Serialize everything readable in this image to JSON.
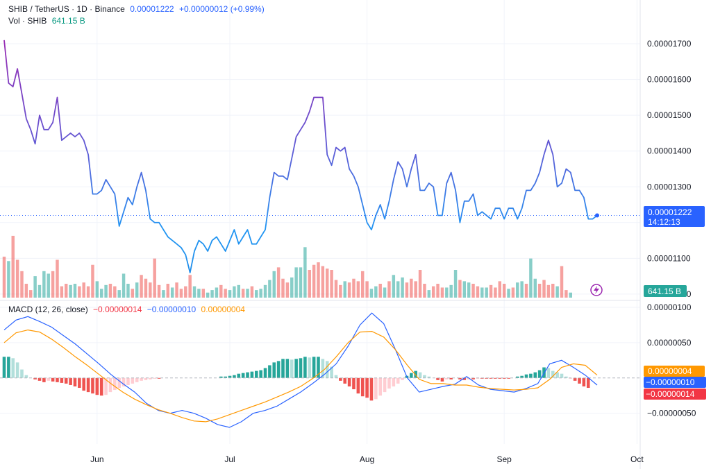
{
  "header": {
    "symbol": "SHIB / TetherUS · 1D · Binance",
    "last_price": "0.00001222",
    "change": "+0.00000012 (+0.99%)",
    "vol_label": "Vol · SHIB",
    "vol_value": "641.15 B"
  },
  "macd_header": {
    "label": "MACD (12, 26, close)",
    "histogram": "−0.00000014",
    "macd": "−0.00000010",
    "signal": "0.00000004"
  },
  "price_tag": {
    "price": "0.00001222",
    "countdown": "14:12:13"
  },
  "volume_tag": "641.15 B",
  "macd_tags": {
    "signal": "0.00000004",
    "macd": "−0.00000010",
    "histogram": "−0.00000014"
  },
  "lightning_icon": "lightning-bolt-icon",
  "colors": {
    "up": "#26a69a",
    "up_light": "#b2dfdb",
    "down": "#ef5350",
    "down_light": "#ffcdd2",
    "macd": "#2962ff",
    "signal": "#ff9800",
    "price_tag": "#2962ff",
    "vol_tag": "#26a69a",
    "hist_tag": "#f23645",
    "header_blue": "#2962ff",
    "header_green": "#089981"
  },
  "chart_data": {
    "type": "line",
    "price_axis": {
      "ticks": [
        "0.00001700",
        "0.00001600",
        "0.00001500",
        "0.00001400",
        "0.00001300",
        "0.00001200",
        "0.00001100",
        "0.00001000"
      ],
      "range": [
        9.94e-06,
        1.735e-05
      ]
    },
    "macd_axis": {
      "ticks": [
        "0.00000100",
        "0.00000050",
        "−0.00000050"
      ],
      "range": [
        -7e-07,
        1.02e-06
      ]
    },
    "x_axis": {
      "labels": [
        "Jun",
        "Jul",
        "Aug",
        "Sep",
        "Oct"
      ],
      "dates": [
        "2024-06-01",
        "2024-07-01",
        "2024-08-01",
        "2024-09-01",
        "2024-10-01"
      ]
    },
    "start_date": "2024-05-11",
    "price_series": [
      1.71e-05,
      1.59e-05,
      1.58e-05,
      1.63e-05,
      1.56e-05,
      1.49e-05,
      1.46e-05,
      1.42e-05,
      1.5e-05,
      1.46e-05,
      1.46e-05,
      1.48e-05,
      1.55e-05,
      1.43e-05,
      1.44e-05,
      1.45e-05,
      1.44e-05,
      1.45e-05,
      1.43e-05,
      1.39e-05,
      1.28e-05,
      1.28e-05,
      1.29e-05,
      1.32e-05,
      1.3e-05,
      1.28e-05,
      1.19e-05,
      1.23e-05,
      1.27e-05,
      1.25e-05,
      1.3e-05,
      1.34e-05,
      1.29e-05,
      1.21e-05,
      1.2e-05,
      1.2e-05,
      1.18e-05,
      1.16e-05,
      1.15e-05,
      1.14e-05,
      1.13e-05,
      1.11e-05,
      1.06e-05,
      1.12e-05,
      1.15e-05,
      1.14e-05,
      1.12e-05,
      1.15e-05,
      1.16e-05,
      1.14e-05,
      1.12e-05,
      1.15e-05,
      1.18e-05,
      1.14e-05,
      1.16e-05,
      1.18e-05,
      1.14e-05,
      1.14e-05,
      1.16e-05,
      1.18e-05,
      1.27e-05,
      1.34e-05,
      1.33e-05,
      1.33e-05,
      1.32e-05,
      1.38e-05,
      1.44e-05,
      1.46e-05,
      1.48e-05,
      1.51e-05,
      1.55e-05,
      1.55e-05,
      1.55e-05,
      1.39e-05,
      1.36e-05,
      1.41e-05,
      1.4e-05,
      1.41e-05,
      1.35e-05,
      1.33e-05,
      1.3e-05,
      1.25e-05,
      1.2e-05,
      1.18e-05,
      1.22e-05,
      1.25e-05,
      1.21e-05,
      1.26e-05,
      1.32e-05,
      1.37e-05,
      1.35e-05,
      1.3e-05,
      1.35e-05,
      1.39e-05,
      1.29e-05,
      1.29e-05,
      1.31e-05,
      1.3e-05,
      1.22e-05,
      1.22e-05,
      1.31e-05,
      1.34e-05,
      1.29e-05,
      1.2e-05,
      1.26e-05,
      1.26e-05,
      1.28e-05,
      1.22e-05,
      1.23e-05,
      1.22e-05,
      1.21e-05,
      1.24e-05,
      1.24e-05,
      1.21e-05,
      1.24e-05,
      1.24e-05,
      1.21e-05,
      1.24e-05,
      1.29e-05,
      1.29e-05,
      1.31e-05,
      1.34e-05,
      1.39e-05,
      1.43e-05,
      1.39e-05,
      1.3e-05,
      1.31e-05,
      1.35e-05,
      1.34e-05,
      1.29e-05,
      1.29e-05,
      1.27e-05,
      1.21e-05,
      1.21e-05,
      1.22e-05
    ],
    "volume_bars": [
      {
        "v": 65,
        "up": false
      },
      {
        "v": 58,
        "up": true
      },
      {
        "v": 98,
        "up": false
      },
      {
        "v": 60,
        "up": false
      },
      {
        "v": 42,
        "up": false
      },
      {
        "v": 22,
        "up": false
      },
      {
        "v": 12,
        "up": false
      },
      {
        "v": 34,
        "up": true
      },
      {
        "v": 20,
        "up": true
      },
      {
        "v": 42,
        "up": true
      },
      {
        "v": 38,
        "up": true
      },
      {
        "v": 42,
        "up": false
      },
      {
        "v": 60,
        "up": false
      },
      {
        "v": 18,
        "up": false
      },
      {
        "v": 22,
        "up": false
      },
      {
        "v": 20,
        "up": true
      },
      {
        "v": 22,
        "up": true
      },
      {
        "v": 18,
        "up": false
      },
      {
        "v": 24,
        "up": false
      },
      {
        "v": 18,
        "up": false
      },
      {
        "v": 52,
        "up": false
      },
      {
        "v": 26,
        "up": true
      },
      {
        "v": 14,
        "up": true
      },
      {
        "v": 20,
        "up": true
      },
      {
        "v": 22,
        "up": false
      },
      {
        "v": 18,
        "up": false
      },
      {
        "v": 12,
        "up": true
      },
      {
        "v": 38,
        "up": true
      },
      {
        "v": 22,
        "up": true
      },
      {
        "v": 14,
        "up": false
      },
      {
        "v": 24,
        "up": true
      },
      {
        "v": 36,
        "up": false
      },
      {
        "v": 30,
        "up": false
      },
      {
        "v": 24,
        "up": false
      },
      {
        "v": 62,
        "up": false
      },
      {
        "v": 20,
        "up": false
      },
      {
        "v": 12,
        "up": true
      },
      {
        "v": 22,
        "up": false
      },
      {
        "v": 16,
        "up": true
      },
      {
        "v": 24,
        "up": false
      },
      {
        "v": 14,
        "up": false
      },
      {
        "v": 18,
        "up": false
      },
      {
        "v": 36,
        "up": false
      },
      {
        "v": 18,
        "up": true
      },
      {
        "v": 14,
        "up": true
      },
      {
        "v": 14,
        "up": false
      },
      {
        "v": 8,
        "up": true
      },
      {
        "v": 12,
        "up": true
      },
      {
        "v": 16,
        "up": true
      },
      {
        "v": 20,
        "up": false
      },
      {
        "v": 14,
        "up": false
      },
      {
        "v": 12,
        "up": true
      },
      {
        "v": 18,
        "up": true
      },
      {
        "v": 20,
        "up": true
      },
      {
        "v": 14,
        "up": false
      },
      {
        "v": 14,
        "up": true
      },
      {
        "v": 18,
        "up": false
      },
      {
        "v": 12,
        "up": true
      },
      {
        "v": 14,
        "up": true
      },
      {
        "v": 20,
        "up": true
      },
      {
        "v": 28,
        "up": true
      },
      {
        "v": 42,
        "up": true
      },
      {
        "v": 48,
        "up": false
      },
      {
        "v": 30,
        "up": false
      },
      {
        "v": 24,
        "up": false
      },
      {
        "v": 32,
        "up": true
      },
      {
        "v": 48,
        "up": true
      },
      {
        "v": 48,
        "up": true
      },
      {
        "v": 80,
        "up": true
      },
      {
        "v": 44,
        "up": false
      },
      {
        "v": 52,
        "up": false
      },
      {
        "v": 56,
        "up": false
      },
      {
        "v": 50,
        "up": false
      },
      {
        "v": 46,
        "up": false
      },
      {
        "v": 44,
        "up": false
      },
      {
        "v": 28,
        "up": false
      },
      {
        "v": 20,
        "up": false
      },
      {
        "v": 26,
        "up": true
      },
      {
        "v": 24,
        "up": false
      },
      {
        "v": 30,
        "up": false
      },
      {
        "v": 26,
        "up": false
      },
      {
        "v": 42,
        "up": false
      },
      {
        "v": 26,
        "up": false
      },
      {
        "v": 14,
        "up": true
      },
      {
        "v": 18,
        "up": true
      },
      {
        "v": 22,
        "up": false
      },
      {
        "v": 16,
        "up": true
      },
      {
        "v": 26,
        "up": false
      },
      {
        "v": 36,
        "up": true
      },
      {
        "v": 26,
        "up": true
      },
      {
        "v": 32,
        "up": true
      },
      {
        "v": 24,
        "up": false
      },
      {
        "v": 30,
        "up": false
      },
      {
        "v": 26,
        "up": false
      },
      {
        "v": 44,
        "up": false
      },
      {
        "v": 22,
        "up": false
      },
      {
        "v": 12,
        "up": true
      },
      {
        "v": 18,
        "up": false
      },
      {
        "v": 22,
        "up": false
      },
      {
        "v": 16,
        "up": false
      },
      {
        "v": 16,
        "up": true
      },
      {
        "v": 20,
        "up": true
      },
      {
        "v": 44,
        "up": true
      },
      {
        "v": 28,
        "up": false
      },
      {
        "v": 26,
        "up": true
      },
      {
        "v": 24,
        "up": true
      },
      {
        "v": 22,
        "up": false
      },
      {
        "v": 18,
        "up": false
      },
      {
        "v": 16,
        "up": true
      },
      {
        "v": 16,
        "up": true
      },
      {
        "v": 20,
        "up": false
      },
      {
        "v": 16,
        "up": false
      },
      {
        "v": 26,
        "up": false
      },
      {
        "v": 22,
        "up": false
      },
      {
        "v": 14,
        "up": true
      },
      {
        "v": 16,
        "up": false
      },
      {
        "v": 24,
        "up": true
      },
      {
        "v": 26,
        "up": true
      },
      {
        "v": 22,
        "up": false
      },
      {
        "v": 62,
        "up": true
      },
      {
        "v": 30,
        "up": true
      },
      {
        "v": 22,
        "up": false
      },
      {
        "v": 28,
        "up": false
      },
      {
        "v": 20,
        "up": false
      },
      {
        "v": 22,
        "up": false
      },
      {
        "v": 18,
        "up": true
      },
      {
        "v": 50,
        "up": false
      },
      {
        "v": 12,
        "up": false
      },
      {
        "v": 8,
        "up": true
      }
    ],
    "macd_histogram": [
      3e-07,
      3e-07,
      2.8e-07,
      2.2e-07,
      1.2e-07,
      4e-08,
      0.0,
      -2e-08,
      -4e-08,
      -6e-08,
      -4e-08,
      -5e-08,
      -6e-08,
      -7e-08,
      -8e-08,
      -1e-07,
      -1.2e-07,
      -1.4e-07,
      -1.8e-07,
      -2e-07,
      -2.2e-07,
      -2.4e-07,
      -2.5e-07,
      -2.4e-07,
      -2e-07,
      -1.7e-07,
      -1.4e-07,
      -1.2e-07,
      -1e-07,
      -8e-08,
      -6e-08,
      -4e-08,
      -3e-08,
      -2e-08,
      -1e-08,
      -1e-08,
      0.0,
      0.0,
      0.0,
      0.0,
      0.0,
      0.0,
      0.0,
      0.0,
      0.0,
      0.0,
      0.0,
      0.0,
      0.0,
      2e-08,
      2e-08,
      3e-08,
      4e-08,
      6e-08,
      7e-08,
      8e-08,
      9e-08,
      1e-07,
      1.1e-07,
      1.4e-07,
      1.8e-07,
      2.2e-07,
      2.4e-07,
      2.7e-07,
      2.7e-07,
      2.6e-07,
      2.7e-07,
      2.8e-07,
      3e-07,
      2.9e-07,
      3e-07,
      3e-07,
      2.7e-07,
      2.4e-07,
      1.6e-07,
      4e-08,
      -4e-08,
      -8e-08,
      -1.2e-07,
      -1.6e-07,
      -2.2e-07,
      -2.6e-07,
      -2.8e-07,
      -3.2e-07,
      -3e-07,
      -2.5e-07,
      -2e-07,
      -1.5e-07,
      -1.2e-07,
      -8e-08,
      -3e-08,
      3e-08,
      7e-08,
      1e-07,
      8e-08,
      4e-08,
      2e-08,
      0.0,
      -3e-08,
      -5e-08,
      -2e-08,
      -2e-08,
      0.0,
      -2e-08,
      -3e-08,
      -2e-08,
      -2e-08,
      -1e-08,
      -1e-08,
      -1e-08,
      -1e-08,
      -1e-08,
      -1e-08,
      -1e-08,
      -1e-08,
      0.0,
      2e-08,
      3e-08,
      5e-08,
      6e-08,
      8e-08,
      1.1e-07,
      1.5e-07,
      1.4e-07,
      1e-07,
      8e-08,
      6e-08,
      2e-08,
      -1e-08,
      -4e-08,
      -8e-08,
      -1.2e-07,
      -1.4e-07
    ],
    "macd_line_points": [
      6.8e-07,
      8.2e-07,
      8.7e-07,
      8e-07,
      7.2e-07,
      6e-07,
      4.8e-07,
      3.4e-07,
      2e-07,
      5e-08,
      -8e-08,
      -2e-07,
      -3.6e-07,
      -4.6e-07,
      -5e-07,
      -4.6e-07,
      -5e-07,
      -5.7e-07,
      -6.6e-07,
      -7e-07,
      -6.2e-07,
      -5e-07,
      -4.6e-07,
      -4e-07,
      -3e-07,
      -2e-07,
      -8e-08,
      5e-08,
      2e-07,
      4.5e-07,
      7.5e-07,
      9.2e-07,
      7.7e-07,
      4e-07,
      0.0,
      -2e-07,
      -1.6e-07,
      -1.2e-07,
      -9e-08,
      2e-08,
      -1e-07,
      -1.6e-07,
      -1.8e-07,
      -2e-07,
      -1.5e-07,
      -8e-08,
      2e-07,
      2.5e-07,
      1.5e-07,
      4e-08,
      -1e-07
    ],
    "signal_line_points": [
      5e-07,
      6.4e-07,
      6.8e-07,
      6.5e-07,
      5.5e-07,
      4.3e-07,
      3e-07,
      1.8e-07,
      5e-08,
      -8e-08,
      -2e-07,
      -3e-07,
      -3.8e-07,
      -4.5e-07,
      -5e-07,
      -5.6e-07,
      -6.1e-07,
      -6.2e-07,
      -5.8e-07,
      -5.2e-07,
      -4.6e-07,
      -4e-07,
      -3.4e-07,
      -2.7e-07,
      -2e-07,
      -1.2e-07,
      -1e-08,
      1.2e-07,
      3e-07,
      5e-07,
      6.5e-07,
      6.6e-07,
      5.8e-07,
      4e-07,
      1.8e-07,
      -2e-08,
      -8e-08,
      -8e-08,
      -1e-07,
      -1e-07,
      -1.3e-07,
      -1.5e-07,
      -1.6e-07,
      -1.7e-07,
      -1.6e-07,
      -1.4e-07,
      -2e-08,
      1.5e-07,
      2e-07,
      1.8e-07,
      4e-08
    ]
  }
}
